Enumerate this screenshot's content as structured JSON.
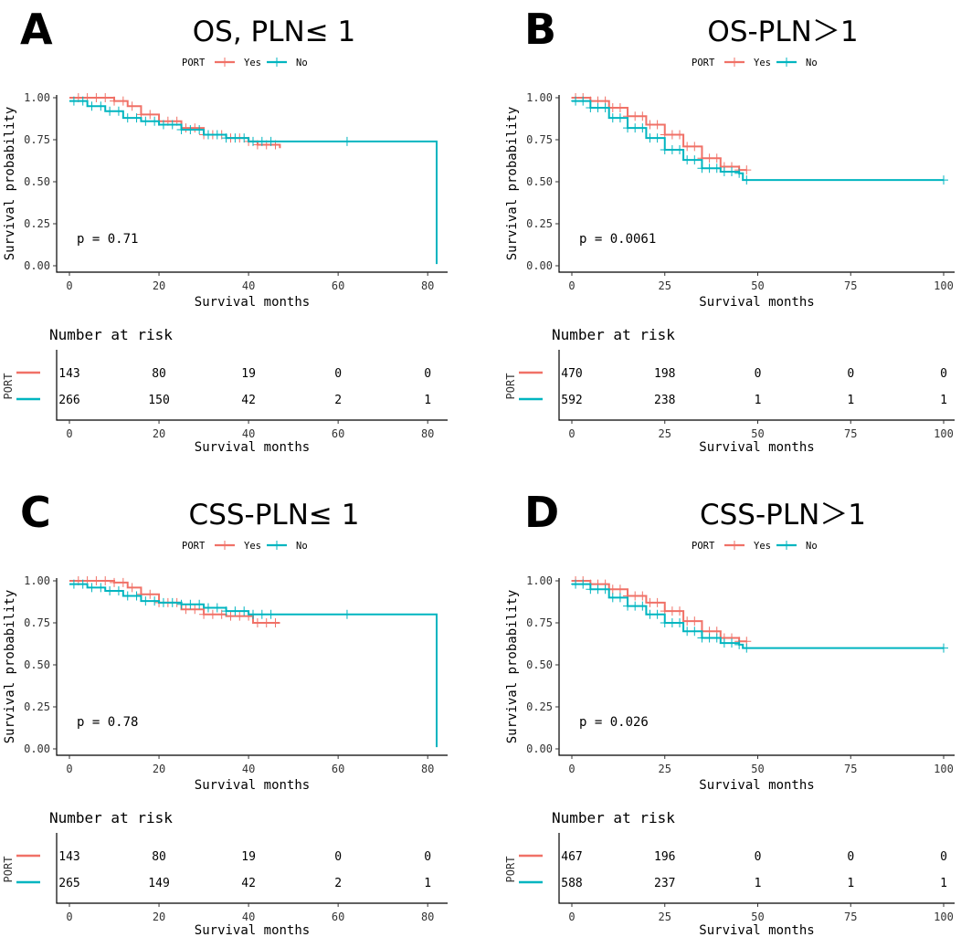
{
  "colors": {
    "yes": "#f07167",
    "no": "#00b5c0"
  },
  "chart_data": [
    {
      "type": "line",
      "panel_label": "A",
      "title": "OS, PLN≤ 1",
      "legend": {
        "title": "PORT",
        "entries": [
          "Yes",
          "No"
        ],
        "placement": "top"
      },
      "xlabel": "Survival months",
      "ylabel": "Survival probability",
      "xlim": [
        0,
        82
      ],
      "ylim": [
        0,
        1
      ],
      "xticks": [
        0,
        20,
        40,
        60,
        80
      ],
      "yticks": [
        0,
        0.25,
        0.5,
        0.75,
        1.0
      ],
      "ytick_labels": [
        "0.00",
        "0.25",
        "0.50",
        "0.75",
        "1.00"
      ],
      "p_value": "p = 0.71",
      "series": [
        {
          "name": "Yes",
          "color_key": "yes",
          "x": [
            0,
            5,
            10,
            13,
            16,
            20,
            25,
            30,
            35,
            40,
            42,
            47
          ],
          "y": [
            1.0,
            1.0,
            0.98,
            0.95,
            0.9,
            0.86,
            0.82,
            0.78,
            0.76,
            0.74,
            0.72,
            0.7
          ],
          "censor_x": [
            2,
            4,
            6,
            8,
            10,
            12,
            14,
            16,
            18,
            20,
            22,
            24,
            26,
            28,
            30,
            32,
            34,
            36,
            38,
            40,
            42,
            44,
            46
          ]
        },
        {
          "name": "No",
          "color_key": "no",
          "x": [
            0,
            4,
            8,
            12,
            16,
            20,
            25,
            30,
            35,
            40,
            82,
            82
          ],
          "y": [
            0.98,
            0.95,
            0.92,
            0.88,
            0.86,
            0.84,
            0.81,
            0.78,
            0.76,
            0.74,
            0.74,
            0.01
          ],
          "censor_x": [
            1,
            3,
            5,
            7,
            9,
            11,
            13,
            15,
            17,
            19,
            21,
            23,
            25,
            27,
            29,
            31,
            33,
            35,
            37,
            39,
            41,
            43,
            45,
            62
          ]
        }
      ],
      "risk_table": {
        "title": "Number at risk",
        "ylabel": "PORT",
        "xlabel": "Survival months",
        "times": [
          0,
          20,
          40,
          60,
          80
        ],
        "rows": [
          {
            "name": "Yes",
            "color_key": "yes",
            "values": [
              "143",
              "80",
              "19",
              "0",
              "0"
            ]
          },
          {
            "name": "No",
            "color_key": "no",
            "values": [
              "266",
              "150",
              "42",
              "2",
              "1"
            ]
          }
        ]
      }
    },
    {
      "type": "line",
      "panel_label": "B",
      "title": "OS-PLN＞1",
      "legend": {
        "title": "PORT",
        "entries": [
          "Yes",
          "No"
        ],
        "placement": "top"
      },
      "xlabel": "Survival months",
      "ylabel": "Survival probability",
      "xlim": [
        0,
        100
      ],
      "ylim": [
        0,
        1
      ],
      "xticks": [
        0,
        25,
        50,
        75,
        100
      ],
      "yticks": [
        0,
        0.25,
        0.5,
        0.75,
        1.0
      ],
      "ytick_labels": [
        "0.00",
        "0.25",
        "0.50",
        "0.75",
        "1.00"
      ],
      "p_value": "p = 0.0061",
      "series": [
        {
          "name": "Yes",
          "color_key": "yes",
          "x": [
            0,
            5,
            10,
            15,
            20,
            25,
            30,
            35,
            40,
            45,
            47
          ],
          "y": [
            1.0,
            0.98,
            0.94,
            0.89,
            0.84,
            0.78,
            0.71,
            0.64,
            0.59,
            0.57,
            0.57
          ],
          "censor_x": [
            1,
            3,
            5,
            7,
            9,
            11,
            13,
            15,
            17,
            19,
            21,
            23,
            25,
            27,
            29,
            31,
            33,
            35,
            37,
            39,
            41,
            43,
            45,
            47
          ]
        },
        {
          "name": "No",
          "color_key": "no",
          "x": [
            0,
            5,
            10,
            15,
            20,
            25,
            30,
            35,
            40,
            45,
            46,
            100
          ],
          "y": [
            0.98,
            0.94,
            0.88,
            0.82,
            0.76,
            0.69,
            0.63,
            0.58,
            0.56,
            0.55,
            0.51,
            0.51
          ],
          "censor_x": [
            1,
            3,
            5,
            7,
            9,
            11,
            13,
            15,
            17,
            19,
            21,
            23,
            25,
            27,
            29,
            31,
            33,
            35,
            37,
            39,
            41,
            43,
            45,
            47,
            100
          ]
        }
      ],
      "risk_table": {
        "title": "Number at risk",
        "ylabel": "PORT",
        "xlabel": "Survival months",
        "times": [
          0,
          25,
          50,
          75,
          100
        ],
        "rows": [
          {
            "name": "Yes",
            "color_key": "yes",
            "values": [
              "470",
              "198",
              "0",
              "0",
              "0"
            ]
          },
          {
            "name": "No",
            "color_key": "no",
            "values": [
              "592",
              "238",
              "1",
              "1",
              "1"
            ]
          }
        ]
      }
    },
    {
      "type": "line",
      "panel_label": "C",
      "title": "CSS-PLN≤ 1",
      "legend": {
        "title": "PORT",
        "entries": [
          "Yes",
          "No"
        ],
        "placement": "top"
      },
      "xlabel": "Survival months",
      "ylabel": "Survival probability",
      "xlim": [
        0,
        82
      ],
      "ylim": [
        0,
        1
      ],
      "xticks": [
        0,
        20,
        40,
        60,
        80
      ],
      "yticks": [
        0,
        0.25,
        0.5,
        0.75,
        1.0
      ],
      "ytick_labels": [
        "0.00",
        "0.25",
        "0.50",
        "0.75",
        "1.00"
      ],
      "p_value": "p = 0.78",
      "series": [
        {
          "name": "Yes",
          "color_key": "yes",
          "x": [
            0,
            5,
            10,
            13,
            16,
            20,
            25,
            30,
            35,
            40,
            41,
            47
          ],
          "y": [
            1.0,
            1.0,
            0.99,
            0.96,
            0.92,
            0.87,
            0.83,
            0.8,
            0.79,
            0.79,
            0.75,
            0.75
          ],
          "censor_x": [
            2,
            4,
            6,
            8,
            10,
            12,
            14,
            16,
            18,
            20,
            22,
            24,
            26,
            28,
            30,
            32,
            34,
            36,
            38,
            40,
            42,
            44,
            46
          ]
        },
        {
          "name": "No",
          "color_key": "no",
          "x": [
            0,
            4,
            8,
            12,
            16,
            20,
            25,
            30,
            35,
            40,
            82,
            82
          ],
          "y": [
            0.98,
            0.96,
            0.94,
            0.91,
            0.88,
            0.87,
            0.86,
            0.84,
            0.82,
            0.8,
            0.8,
            0.01
          ],
          "censor_x": [
            1,
            3,
            5,
            7,
            9,
            11,
            13,
            15,
            17,
            19,
            21,
            23,
            25,
            27,
            29,
            31,
            33,
            35,
            37,
            39,
            41,
            43,
            45,
            62
          ]
        }
      ],
      "risk_table": {
        "title": "Number at risk",
        "ylabel": "PORT",
        "xlabel": "Survival months",
        "times": [
          0,
          20,
          40,
          60,
          80
        ],
        "rows": [
          {
            "name": "Yes",
            "color_key": "yes",
            "values": [
              "143",
              "80",
              "19",
              "0",
              "0"
            ]
          },
          {
            "name": "No",
            "color_key": "no",
            "values": [
              "265",
              "149",
              "42",
              "2",
              "1"
            ]
          }
        ]
      }
    },
    {
      "type": "line",
      "panel_label": "D",
      "title": "CSS-PLN＞1",
      "legend": {
        "title": "PORT",
        "entries": [
          "Yes",
          "No"
        ],
        "placement": "top"
      },
      "xlabel": "Survival months",
      "ylabel": "Survival probability",
      "xlim": [
        0,
        100
      ],
      "ylim": [
        0,
        1
      ],
      "xticks": [
        0,
        25,
        50,
        75,
        100
      ],
      "yticks": [
        0,
        0.25,
        0.5,
        0.75,
        1.0
      ],
      "ytick_labels": [
        "0.00",
        "0.25",
        "0.50",
        "0.75",
        "1.00"
      ],
      "p_value": "p = 0.026",
      "series": [
        {
          "name": "Yes",
          "color_key": "yes",
          "x": [
            0,
            5,
            10,
            15,
            20,
            25,
            30,
            35,
            40,
            45,
            47
          ],
          "y": [
            1.0,
            0.98,
            0.95,
            0.91,
            0.87,
            0.82,
            0.76,
            0.7,
            0.66,
            0.64,
            0.64
          ],
          "censor_x": [
            1,
            3,
            5,
            7,
            9,
            11,
            13,
            15,
            17,
            19,
            21,
            23,
            25,
            27,
            29,
            31,
            33,
            35,
            37,
            39,
            41,
            43,
            45,
            47
          ]
        },
        {
          "name": "No",
          "color_key": "no",
          "x": [
            0,
            5,
            10,
            15,
            20,
            25,
            30,
            35,
            40,
            45,
            46,
            100
          ],
          "y": [
            0.98,
            0.95,
            0.9,
            0.85,
            0.8,
            0.75,
            0.7,
            0.66,
            0.63,
            0.62,
            0.6,
            0.6
          ],
          "censor_x": [
            1,
            3,
            5,
            7,
            9,
            11,
            13,
            15,
            17,
            19,
            21,
            23,
            25,
            27,
            29,
            31,
            33,
            35,
            37,
            39,
            41,
            43,
            45,
            47,
            100
          ]
        }
      ],
      "risk_table": {
        "title": "Number at risk",
        "ylabel": "PORT",
        "xlabel": "Survival months",
        "times": [
          0,
          25,
          50,
          75,
          100
        ],
        "rows": [
          {
            "name": "Yes",
            "color_key": "yes",
            "values": [
              "467",
              "196",
              "0",
              "0",
              "0"
            ]
          },
          {
            "name": "No",
            "color_key": "no",
            "values": [
              "588",
              "237",
              "1",
              "1",
              "1"
            ]
          }
        ]
      }
    }
  ]
}
